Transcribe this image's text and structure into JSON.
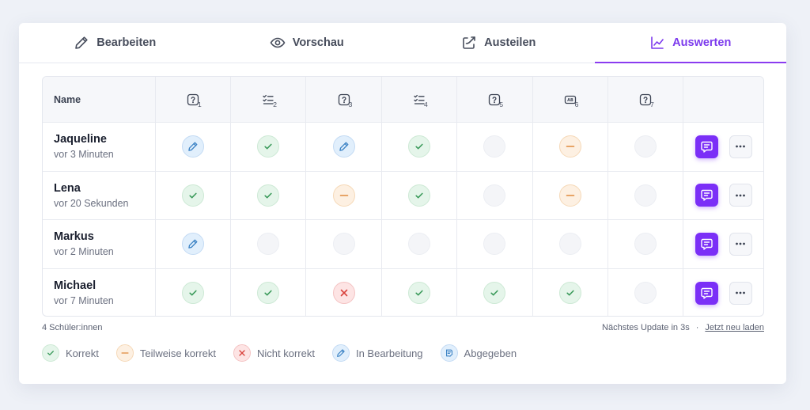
{
  "tabs": [
    {
      "label": "Bearbeiten",
      "icon": "pencil-icon",
      "active": false
    },
    {
      "label": "Vorschau",
      "icon": "eye-icon",
      "active": false
    },
    {
      "label": "Austeilen",
      "icon": "share-icon",
      "active": false
    },
    {
      "label": "Auswerten",
      "icon": "chart-line-icon",
      "active": true
    }
  ],
  "table": {
    "name_header": "Name",
    "questions": [
      {
        "num": "1",
        "icon": "question-box-icon"
      },
      {
        "num": "2",
        "icon": "checklist-icon"
      },
      {
        "num": "3",
        "icon": "question-box-icon"
      },
      {
        "num": "4",
        "icon": "checklist-icon"
      },
      {
        "num": "5",
        "icon": "question-box-icon"
      },
      {
        "num": "6",
        "icon": "ab-box-icon"
      },
      {
        "num": "7",
        "icon": "question-box-icon"
      }
    ],
    "students": [
      {
        "name": "Jaqueline",
        "time": "vor 3 Minuten",
        "status": [
          "edit",
          "correct",
          "edit",
          "correct",
          "empty",
          "partial",
          "empty"
        ]
      },
      {
        "name": "Lena",
        "time": "vor 20 Sekunden",
        "status": [
          "correct",
          "correct",
          "partial",
          "correct",
          "empty",
          "partial",
          "empty"
        ]
      },
      {
        "name": "Markus",
        "time": "vor 2 Minuten",
        "status": [
          "edit",
          "empty",
          "empty",
          "empty",
          "empty",
          "empty",
          "empty"
        ]
      },
      {
        "name": "Michael",
        "time": "vor 7 Minuten",
        "status": [
          "correct",
          "correct",
          "wrong",
          "correct",
          "correct",
          "correct",
          "empty"
        ]
      }
    ]
  },
  "footer": {
    "count": "4 Schüler:innen",
    "update": "Nächstes Update in 3s",
    "separator": "·",
    "reload": "Jetzt neu laden"
  },
  "legend": [
    {
      "status": "correct",
      "label": "Korrekt"
    },
    {
      "status": "partial",
      "label": "Teilweise korrekt"
    },
    {
      "status": "wrong",
      "label": "Nicht korrekt"
    },
    {
      "status": "edit",
      "label": "In Bearbeitung"
    },
    {
      "status": "submitted",
      "label": "Abgegeben"
    }
  ],
  "colors": {
    "accent": "#7c3aed",
    "chat_button": "#7b2ff7",
    "correct": "#3a9a5a",
    "partial": "#e08a3c",
    "wrong": "#d9453f",
    "edit": "#3b82c4"
  }
}
